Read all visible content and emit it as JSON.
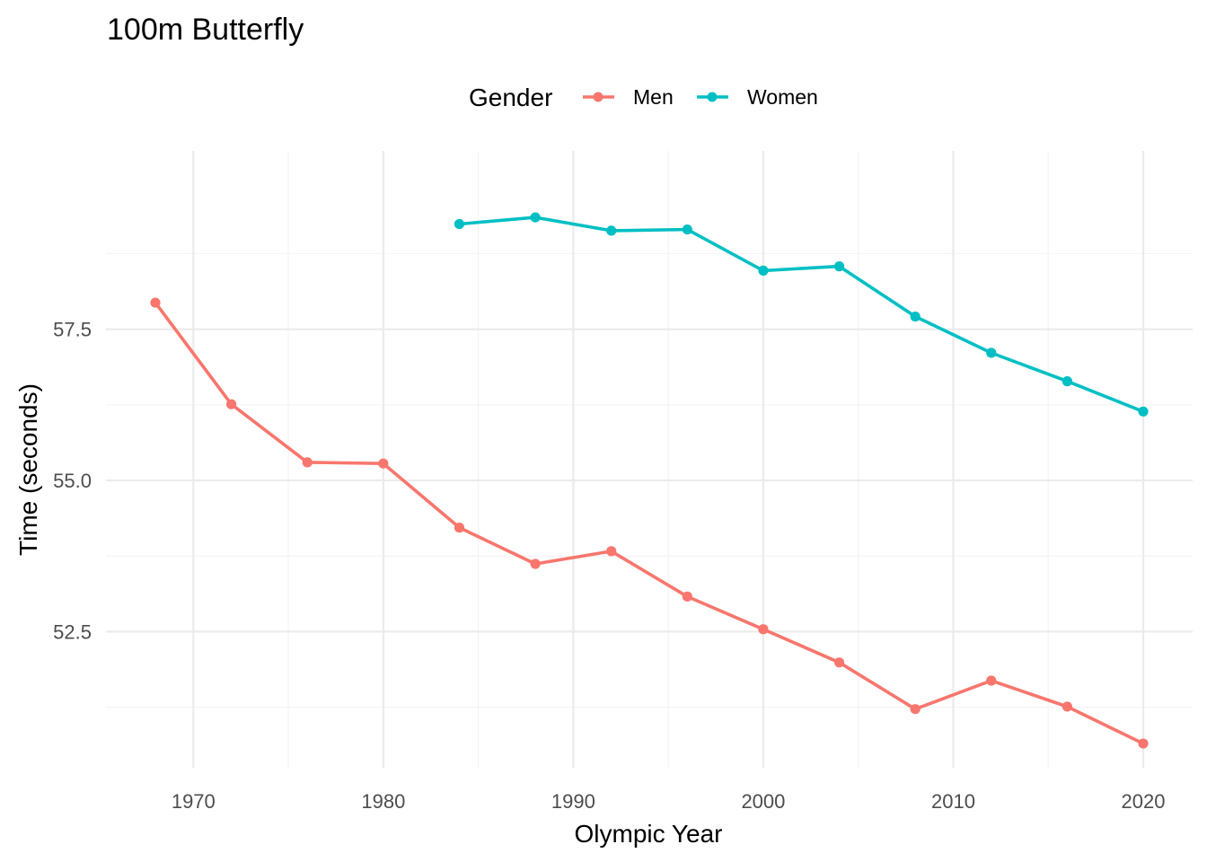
{
  "chart_data": {
    "type": "line",
    "title": "100m Butterfly",
    "xlabel": "Olympic Year",
    "ylabel": "Time (seconds)",
    "legend": {
      "title": "Gender",
      "position": "top"
    },
    "xlim": [
      1965.4,
      2022.6
    ],
    "ylim": [
      50.25,
      60.45
    ],
    "x_ticks": [
      1970,
      1980,
      1990,
      2000,
      2010,
      2020
    ],
    "x_tick_labels": [
      "1970",
      "1980",
      "1990",
      "2000",
      "2010",
      "2020"
    ],
    "x_minor_ticks": [
      1965,
      1975,
      1985,
      1995,
      2005,
      2015
    ],
    "y_ticks": [
      52.5,
      55.0,
      57.5
    ],
    "y_tick_labels": [
      "52.5",
      "55.0",
      "57.5"
    ],
    "y_minor_ticks": [
      51.25,
      53.75,
      56.25,
      58.75
    ],
    "grid": true,
    "series": [
      {
        "name": "Men",
        "color": "#F8766D",
        "x": [
          1968,
          1972,
          1976,
          1980,
          1984,
          1988,
          1992,
          1996,
          2000,
          2004,
          2008,
          2012,
          2016,
          2020
        ],
        "values": [
          57.94,
          56.26,
          55.3,
          55.28,
          54.22,
          53.62,
          53.83,
          53.08,
          52.54,
          51.99,
          51.22,
          51.69,
          51.26,
          50.65
        ]
      },
      {
        "name": "Women",
        "color": "#00BFC4",
        "x": [
          1984,
          1988,
          1992,
          1996,
          2000,
          2004,
          2008,
          2012,
          2016,
          2020
        ],
        "values": [
          59.24,
          59.35,
          59.13,
          59.15,
          58.47,
          58.54,
          57.71,
          57.11,
          56.64,
          56.14
        ]
      }
    ]
  }
}
